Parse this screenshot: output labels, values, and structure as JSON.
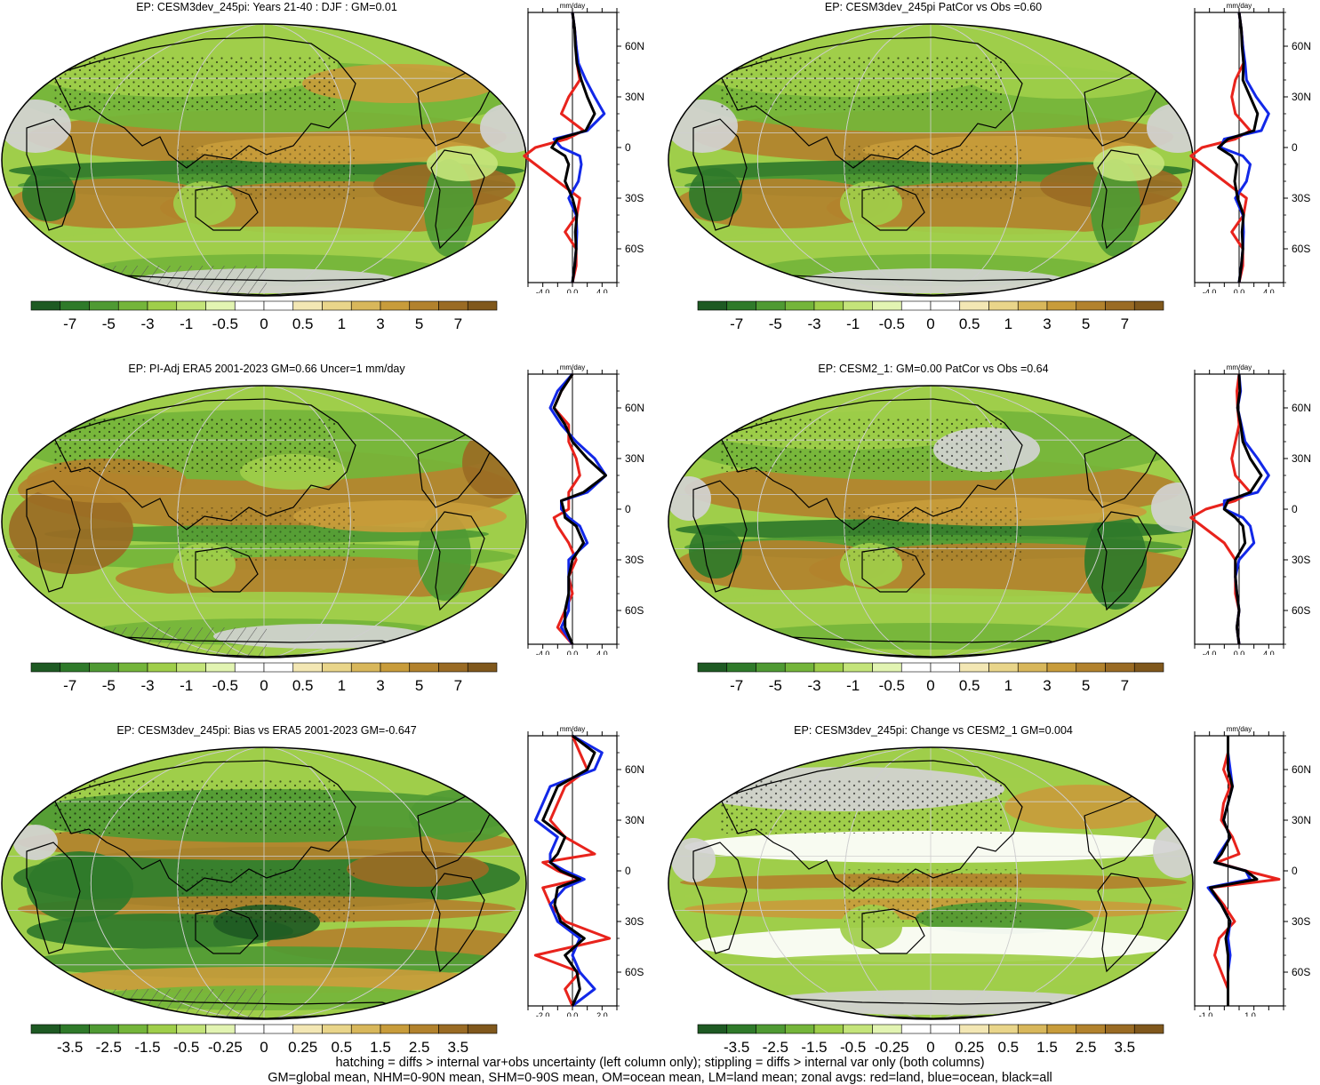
{
  "palette": {
    "green": [
      "#1e5a23",
      "#2f7a2a",
      "#4f9a33",
      "#74b53a",
      "#9fce4a",
      "#c4e47a",
      "#e2f4b2"
    ],
    "center": "#ffffff",
    "brown": [
      "#f3e7b4",
      "#e9d58a",
      "#d8b75b",
      "#c89c3b",
      "#b2822d",
      "#9a6b24",
      "#80581c"
    ],
    "missing": "#d3d3d3",
    "land_line": "#e8231c",
    "ocean_line": "#1228e8",
    "all_line": "#000000"
  },
  "panels": [
    {
      "id": "model-years-21-40",
      "title": "EP: CESM3dev_245pi: Years 21-40 : DJF : GM=0.01",
      "colorbar_labels": [
        "-7",
        "-5",
        "-3",
        "-1",
        "-0.5",
        "0",
        "0.5",
        "1",
        "3",
        "5",
        "7"
      ],
      "zonal": {
        "xticks": [
          "-4.0",
          "0.0",
          "4.0"
        ],
        "xlim": [
          -6,
          6
        ],
        "units": "mm/day"
      }
    },
    {
      "id": "model-patcor",
      "title": "EP: CESM3dev_245pi PatCor vs Obs =0.60",
      "colorbar_labels": [
        "-7",
        "-5",
        "-3",
        "-1",
        "-0.5",
        "0",
        "0.5",
        "1",
        "3",
        "5",
        "7"
      ],
      "zonal": {
        "xticks": [
          "-4.0",
          "0.0",
          "4.0"
        ],
        "xlim": [
          -6,
          6
        ],
        "units": "mm/day"
      }
    },
    {
      "id": "era5-obs",
      "title": "EP: PI-Adj ERA5 2001-2023 GM=0.66 Uncer=1 mm/day",
      "colorbar_labels": [
        "-7",
        "-5",
        "-3",
        "-1",
        "-0.5",
        "0",
        "0.5",
        "1",
        "3",
        "5",
        "7"
      ],
      "zonal": {
        "xticks": [
          "-4.0",
          "0.0",
          "4.0"
        ],
        "xlim": [
          -6,
          6
        ],
        "units": "mm/day"
      }
    },
    {
      "id": "cesm2-1",
      "title": "EP: CESM2_1: GM=0.00 PatCor vs Obs =0.64",
      "colorbar_labels": [
        "-7",
        "-5",
        "-3",
        "-1",
        "-0.5",
        "0",
        "0.5",
        "1",
        "3",
        "5",
        "7"
      ],
      "zonal": {
        "xticks": [
          "-4.0",
          "0.0",
          "4.0"
        ],
        "xlim": [
          -6,
          6
        ],
        "units": "mm/day"
      }
    },
    {
      "id": "bias-vs-era5",
      "title": "EP: CESM3dev_245pi: Bias vs ERA5 2001-2023 GM=-0.647",
      "colorbar_labels": [
        "-3.5",
        "-2.5",
        "-1.5",
        "-0.5",
        "-0.25",
        "0",
        "0.25",
        "0.5",
        "1.5",
        "2.5",
        "3.5"
      ],
      "zonal": {
        "xticks": [
          "-2.0",
          "0.0",
          "2.0"
        ],
        "xlim": [
          -3,
          3
        ],
        "units": "mm/day"
      }
    },
    {
      "id": "change-vs-cesm2-1",
      "title": "EP: CESM3dev_245pi: Change vs CESM2_1 GM=0.004",
      "colorbar_labels": [
        "-3.5",
        "-2.5",
        "-1.5",
        "-0.5",
        "-0.25",
        "0",
        "0.25",
        "0.5",
        "1.5",
        "2.5",
        "3.5"
      ],
      "zonal": {
        "xticks": [
          "-1.0",
          "1.0"
        ],
        "xlim": [
          -1.5,
          2.5
        ],
        "units": "mm/day"
      }
    }
  ],
  "chart_data": [
    {
      "type": "line",
      "title": "EP: CESM3dev_245pi: Years 21-40 : DJF : GM=0.01",
      "xlabel": "mm/day",
      "xlim": [
        -6,
        6
      ],
      "ylim": [
        -80,
        80
      ],
      "y_tick_labels": [
        "60N",
        "30N",
        "0",
        "30S",
        "60S"
      ],
      "y": [
        80,
        70,
        60,
        50,
        40,
        30,
        20,
        10,
        5,
        0,
        -5,
        -10,
        -20,
        -30,
        -40,
        -50,
        -60,
        -70,
        -80
      ],
      "series": [
        {
          "name": "land",
          "color": "red",
          "values": [
            0,
            0.3,
            0.5,
            0.6,
            1.0,
            -0.5,
            -1.5,
            1.5,
            -0.8,
            -5.0,
            -6.5,
            -5.0,
            -2.0,
            1.0,
            0.6,
            -1.0,
            0.5,
            0.5,
            0
          ]
        },
        {
          "name": "ocean",
          "color": "blue",
          "values": [
            0,
            0.3,
            0.5,
            0.8,
            1.8,
            3.0,
            4.3,
            2.0,
            -2.5,
            -1.5,
            1.0,
            1.2,
            0.8,
            -0.5,
            0.5,
            0.6,
            0.5,
            0.3,
            0
          ]
        },
        {
          "name": "all",
          "color": "black",
          "values": [
            0,
            0.3,
            0.4,
            0.6,
            1.2,
            2.0,
            3.0,
            1.8,
            -2.0,
            -2.8,
            -1.0,
            -0.5,
            -1.0,
            0.0,
            0.6,
            0.4,
            0.5,
            0.3,
            0
          ]
        }
      ]
    },
    {
      "type": "line",
      "title": "EP: CESM3dev_245pi PatCor vs Obs =0.60",
      "xlabel": "mm/day",
      "xlim": [
        -6,
        6
      ],
      "ylim": [
        -80,
        80
      ],
      "y_tick_labels": [
        "60N",
        "30N",
        "0",
        "30S",
        "60S"
      ],
      "y": [
        80,
        70,
        60,
        50,
        40,
        30,
        20,
        10,
        5,
        0,
        -5,
        -10,
        -20,
        -30,
        -40,
        -50,
        -60,
        -70,
        -80
      ],
      "series": [
        {
          "name": "land",
          "color": "red",
          "values": [
            0,
            0.3,
            0.5,
            0.6,
            -0.5,
            -1.0,
            -0.5,
            1.5,
            -0.5,
            -5.0,
            -6.5,
            -5.0,
            -2.0,
            1.0,
            0.6,
            -1.0,
            0.5,
            0.5,
            0
          ]
        },
        {
          "name": "ocean",
          "color": "blue",
          "values": [
            0,
            0.3,
            0.5,
            0.8,
            1.0,
            2.3,
            4.0,
            3.0,
            -2.0,
            -2.5,
            0.5,
            1.5,
            1.0,
            -0.5,
            0.5,
            0.6,
            0.5,
            0.3,
            0
          ]
        },
        {
          "name": "all",
          "color": "black",
          "values": [
            0,
            0.3,
            0.4,
            0.6,
            0.5,
            1.5,
            2.5,
            2.0,
            -1.5,
            -2.8,
            -1.0,
            -0.3,
            -0.6,
            -0.2,
            0.6,
            0.4,
            0.5,
            0.3,
            0
          ]
        }
      ]
    },
    {
      "type": "line",
      "title": "EP: PI-Adj ERA5 2001-2023 GM=0.66 Uncer=1 mm/day",
      "xlabel": "mm/day",
      "xlim": [
        -6,
        6
      ],
      "ylim": [
        -80,
        80
      ],
      "y_tick_labels": [
        "60N",
        "30N",
        "0",
        "30S",
        "60S"
      ],
      "y": [
        80,
        70,
        60,
        50,
        40,
        30,
        20,
        10,
        5,
        0,
        -5,
        -10,
        -20,
        -30,
        -40,
        -50,
        -60,
        -70,
        -80
      ],
      "series": [
        {
          "name": "land",
          "color": "red",
          "values": [
            0,
            -1.5,
            -2.5,
            -0.5,
            -0.5,
            0.5,
            1.0,
            -0.5,
            -0.5,
            -0.5,
            -2.5,
            -2.0,
            -0.5,
            0.5,
            -0.5,
            0.0,
            -1.0,
            -2.0,
            0
          ]
        },
        {
          "name": "ocean",
          "color": "blue",
          "values": [
            0,
            -2.0,
            -3.0,
            -1.5,
            0.5,
            3.0,
            4.5,
            2.0,
            -1.5,
            -1.5,
            -0.5,
            1.0,
            2.0,
            -0.5,
            -0.5,
            -0.5,
            -0.5,
            -1.5,
            0
          ]
        },
        {
          "name": "all",
          "color": "black",
          "values": [
            0,
            -1.5,
            -2.5,
            -1.0,
            0.0,
            2.0,
            4.5,
            1.5,
            -1.5,
            -1.2,
            -1.0,
            0.5,
            1.5,
            0.0,
            -0.5,
            -0.5,
            -1.0,
            -1.0,
            0
          ]
        }
      ]
    },
    {
      "type": "line",
      "title": "EP: CESM2_1: GM=0.00 PatCor vs Obs =0.64",
      "xlabel": "mm/day",
      "xlim": [
        -6,
        6
      ],
      "ylim": [
        -80,
        80
      ],
      "y_tick_labels": [
        "60N",
        "30N",
        "0",
        "30S",
        "60S"
      ],
      "y": [
        80,
        70,
        60,
        50,
        40,
        30,
        20,
        10,
        5,
        0,
        -5,
        -10,
        -20,
        -30,
        -40,
        -50,
        -60,
        -70,
        -80
      ],
      "series": [
        {
          "name": "land",
          "color": "red",
          "values": [
            0,
            -0.3,
            -0.2,
            0.0,
            -0.5,
            -1.0,
            -0.5,
            1.5,
            -0.5,
            -4.5,
            -6.5,
            -5.0,
            -2.0,
            -0.5,
            -0.5,
            -0.5,
            0.0,
            -0.3,
            0
          ]
        },
        {
          "name": "ocean",
          "color": "blue",
          "values": [
            0,
            0.2,
            -0.2,
            0.3,
            0.8,
            2.5,
            4.0,
            2.5,
            -2.0,
            -2.0,
            0.5,
            1.5,
            2.0,
            0.0,
            -0.5,
            -0.3,
            0.0,
            -0.3,
            0
          ]
        },
        {
          "name": "all",
          "color": "black",
          "values": [
            0,
            0.1,
            -0.2,
            0.2,
            0.5,
            1.5,
            3.0,
            1.5,
            -1.5,
            -2.0,
            -0.5,
            0.5,
            0.8,
            -0.5,
            -0.5,
            -0.3,
            0.0,
            -0.3,
            0
          ]
        }
      ]
    },
    {
      "type": "line",
      "title": "EP: CESM3dev_245pi: Bias vs ERA5 2001-2023 GM=-0.647",
      "xlabel": "mm/day",
      "xlim": [
        -3,
        3
      ],
      "ylim": [
        -80,
        80
      ],
      "y_tick_labels": [
        "60N",
        "30N",
        "0",
        "30S",
        "60S"
      ],
      "y": [
        80,
        70,
        60,
        50,
        40,
        30,
        20,
        10,
        5,
        0,
        -5,
        -10,
        -20,
        -30,
        -40,
        -50,
        -60,
        -70,
        -80
      ],
      "series": [
        {
          "name": "land",
          "color": "red",
          "values": [
            0,
            0.5,
            1.0,
            -0.5,
            -1.0,
            -1.5,
            -0.5,
            1.5,
            -2.0,
            -1.0,
            0.5,
            -2.0,
            -1.5,
            -0.5,
            2.5,
            -2.5,
            0.5,
            -0.5,
            0
          ]
        },
        {
          "name": "ocean",
          "color": "blue",
          "values": [
            0,
            2.0,
            1.5,
            -1.5,
            -2.0,
            -2.5,
            -1.0,
            -1.5,
            -1.5,
            -0.5,
            0.8,
            -0.5,
            -1.5,
            -1.0,
            0.5,
            0.0,
            0.5,
            1.5,
            0
          ]
        },
        {
          "name": "all",
          "color": "black",
          "values": [
            0,
            1.5,
            1.0,
            -1.0,
            -1.5,
            -2.0,
            -0.5,
            -1.0,
            -1.5,
            -0.8,
            0.5,
            -1.0,
            -1.2,
            -0.8,
            0.8,
            -0.5,
            0.3,
            0.5,
            0
          ]
        }
      ]
    },
    {
      "type": "line",
      "title": "EP: CESM3dev_245pi: Change vs CESM2_1 GM=0.004",
      "xlabel": "mm/day",
      "xlim": [
        -1.5,
        2.5
      ],
      "ylim": [
        -80,
        80
      ],
      "y_tick_labels": [
        "60N",
        "30N",
        "0",
        "30S",
        "60S"
      ],
      "y": [
        80,
        70,
        60,
        50,
        40,
        30,
        20,
        10,
        5,
        0,
        -5,
        -10,
        -20,
        -30,
        -40,
        -50,
        -60,
        -70,
        -80
      ],
      "series": [
        {
          "name": "land",
          "color": "red",
          "values": [
            0,
            0.0,
            -0.2,
            0.1,
            -0.2,
            -0.3,
            0.2,
            0.5,
            -0.5,
            0.8,
            2.3,
            -0.8,
            -0.2,
            0.3,
            -0.4,
            -0.6,
            -0.3,
            0.0,
            0
          ]
        },
        {
          "name": "ocean",
          "color": "blue",
          "values": [
            0,
            0.0,
            0.1,
            0.2,
            0.0,
            -0.2,
            0.1,
            -0.4,
            -0.6,
            0.8,
            1.0,
            -0.9,
            -0.3,
            0.1,
            0.0,
            0.1,
            0.0,
            0.0,
            0
          ]
        },
        {
          "name": "all",
          "color": "black",
          "values": [
            0,
            0.0,
            0.0,
            0.2,
            0.0,
            -0.2,
            0.1,
            -0.3,
            -0.6,
            0.8,
            1.3,
            -0.8,
            -0.3,
            0.1,
            -0.1,
            0.0,
            0.0,
            0.0,
            0
          ]
        }
      ]
    }
  ],
  "footer": {
    "line1": "hatching = diffs > internal var+obs uncertainty (left column only); stippling = diffs > internal var only (both columns)",
    "line2": "GM=global mean, NHM=0-90N mean, SHM=0-90S mean, OM=ocean mean, LM=land mean; zonal avgs: red=land, blue=ocean, black=all"
  }
}
